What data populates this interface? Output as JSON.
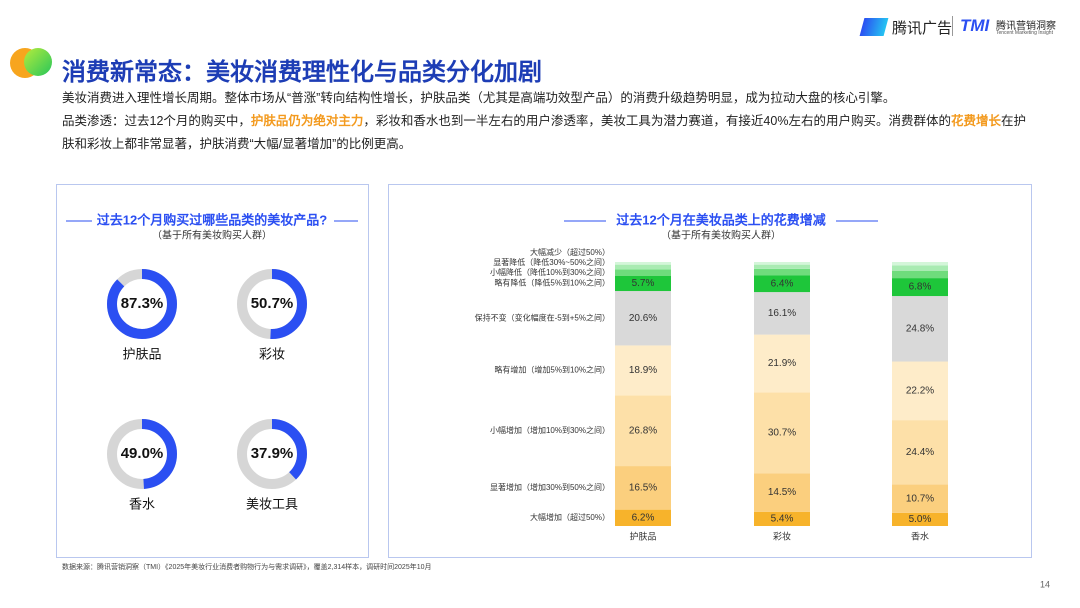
{
  "header": {
    "brand1": "腾讯广告",
    "brand2": "TMI",
    "brand3": "腾讯营销洞察",
    "brand4": "Tencent Marketing Insight",
    "title": "消费新常态：美妆消费理性化与品类分化加剧"
  },
  "intro": {
    "line1": "美妆消费进入理性增长周期。整体市场从“普涨”转向结构性增长，护肤品类（尤其是高端功效型产品）的消费升级趋势明显，成为拉动大盘的核心引擎。",
    "line2": [
      "品类渗透：过去12个月的购买中，",
      "护肤品仍为绝对主力",
      "，彩妆和香水也到一半左右的用户渗透率，美妆工具为潜力赛道，有接近40%左右的用户购买。消费群体的",
      "花费增长",
      "在护肤和彩妆上都非常显著，护肤消费“大幅/显著增加”的比例更高。"
    ]
  },
  "chart_data": [
    {
      "type": "donut",
      "title": "过去12个月购买过哪些品类的美妆产品?",
      "subtitle": "（基于所有美妆购买人群）",
      "categories": [
        "护肤品",
        "彩妆",
        "香水",
        "美妆工具"
      ],
      "values": [
        87.3,
        50.7,
        49.0,
        37.9
      ],
      "value_labels": [
        "87.3%",
        "50.7%",
        "49.0%",
        "37.9%"
      ],
      "color": "#2b4ff2",
      "track_color": "#d6d6d6"
    },
    {
      "type": "stacked_bar",
      "title": "过去12个月在美妆品类上的花费增减",
      "subtitle": "（基于所有美妆购买人群）",
      "categories": [
        "护肤品",
        "彩妆",
        "香水"
      ],
      "series": [
        {
          "name": "大幅增加（超过50%）",
          "color": "#f7b32b",
          "values": [
            6.2,
            5.4,
            5.0
          ],
          "value_labels": [
            "6.2%",
            "5.4%",
            "5.0%"
          ]
        },
        {
          "name": "显著增加（增加30%到50%之间）",
          "color": "#fbcf7e",
          "values": [
            16.5,
            14.5,
            10.7
          ],
          "value_labels": [
            "16.5%",
            "14.5%",
            "10.7%"
          ]
        },
        {
          "name": "小幅增加（增加10%到30%之间）",
          "color": "#fde0a8",
          "values": [
            26.8,
            30.7,
            24.4
          ],
          "value_labels": [
            "26.8%",
            "30.7%",
            "24.4%"
          ]
        },
        {
          "name": "略有增加（增加5%到10%之间）",
          "color": "#feecc9",
          "values": [
            18.9,
            21.9,
            22.2
          ],
          "value_labels": [
            "18.9%",
            "21.9%",
            "22.2%"
          ]
        },
        {
          "name": "保持不变（变化幅度在-5到+5%之间）",
          "color": "#d9d9d9",
          "values": [
            20.6,
            16.1,
            24.8
          ],
          "value_labels": [
            "20.6%",
            "16.1%",
            "24.8%"
          ]
        },
        {
          "name": "略有降低（降低5%到10%之间）",
          "color": "#1ec63a",
          "values": [
            5.7,
            6.4,
            6.8
          ],
          "value_labels": [
            "5.7%",
            "6.4%",
            "6.8%"
          ]
        },
        {
          "name": "小幅降低（降低10%到30%之间）",
          "color": "#6fdc7c",
          "values": [
            2.5,
            2.4,
            2.8
          ],
          "value_labels": [
            null,
            null,
            null
          ]
        },
        {
          "name": "显著降低（降低30%~50%之间）",
          "color": "#a9ebb2",
          "values": [
            1.8,
            1.6,
            2.0
          ],
          "value_labels": [
            null,
            null,
            null
          ]
        },
        {
          "name": "大幅减少（超过50%）",
          "color": "#d4f6d9",
          "values": [
            1.0,
            1.0,
            1.3
          ],
          "value_labels": [
            null,
            null,
            null
          ]
        }
      ]
    }
  ],
  "footer": {
    "source": "数据来源：腾讯营销洞察（TMI）《2025年美妆行业消费者购物行为与需求调研》，覆盖2,314样本，调研时间2025年10月",
    "page": "14"
  }
}
